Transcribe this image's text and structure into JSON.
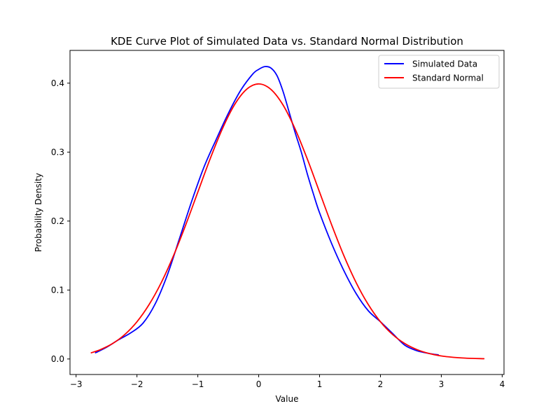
{
  "chart_data": {
    "type": "line",
    "title": "KDE Curve Plot of Simulated Data vs. Standard Normal Distribution",
    "xlabel": "Value",
    "ylabel": "Probability Density",
    "xlim": [
      -3.1,
      4.03
    ],
    "ylim": [
      -0.0225,
      0.4475
    ],
    "xticks": [
      -3,
      -2,
      -1,
      0,
      1,
      2,
      3,
      4
    ],
    "yticks": [
      0.0,
      0.1,
      0.2,
      0.3,
      0.4
    ],
    "xtick_labels": [
      "−3",
      "−2",
      "−1",
      "0",
      "1",
      "2",
      "3",
      "4"
    ],
    "ytick_labels": [
      "0.0",
      "0.1",
      "0.2",
      "0.3",
      "0.4"
    ],
    "grid": false,
    "legend": "top-right",
    "series": [
      {
        "name": "Simulated Data",
        "color": "#0000ff",
        "x": [
          -2.68,
          -2.5,
          -2.3,
          -2.1,
          -1.9,
          -1.7,
          -1.5,
          -1.3,
          -1.1,
          -0.9,
          -0.7,
          -0.5,
          -0.3,
          -0.1,
          0.0,
          0.1,
          0.2,
          0.3,
          0.4,
          0.5,
          0.6,
          0.7,
          0.8,
          0.9,
          1.0,
          1.2,
          1.4,
          1.6,
          1.8,
          2.0,
          2.2,
          2.4,
          2.6,
          2.8,
          2.95
        ],
        "y": [
          0.009,
          0.017,
          0.028,
          0.038,
          0.052,
          0.08,
          0.122,
          0.175,
          0.229,
          0.278,
          0.318,
          0.356,
          0.389,
          0.413,
          0.42,
          0.424,
          0.422,
          0.411,
          0.388,
          0.358,
          0.328,
          0.3,
          0.268,
          0.239,
          0.212,
          0.167,
          0.128,
          0.095,
          0.07,
          0.054,
          0.037,
          0.02,
          0.012,
          0.008,
          0.006
        ]
      },
      {
        "name": "Standard Normal",
        "color": "#ff0000",
        "x": [
          -2.75,
          -2.6,
          -2.4,
          -2.2,
          -2.0,
          -1.8,
          -1.6,
          -1.4,
          -1.2,
          -1.0,
          -0.8,
          -0.6,
          -0.4,
          -0.2,
          0.0,
          0.2,
          0.4,
          0.6,
          0.8,
          1.0,
          1.2,
          1.4,
          1.6,
          1.8,
          2.0,
          2.2,
          2.4,
          2.6,
          2.8,
          3.0,
          3.2,
          3.4,
          3.7
        ],
        "y": [
          0.009,
          0.0136,
          0.0224,
          0.0355,
          0.054,
          0.079,
          0.1109,
          0.1497,
          0.1942,
          0.242,
          0.2897,
          0.3332,
          0.3683,
          0.391,
          0.3989,
          0.391,
          0.3683,
          0.3332,
          0.2897,
          0.242,
          0.1942,
          0.1497,
          0.1109,
          0.079,
          0.054,
          0.0355,
          0.0224,
          0.0136,
          0.0079,
          0.0044,
          0.0024,
          0.0012,
          0.0004
        ]
      }
    ]
  }
}
